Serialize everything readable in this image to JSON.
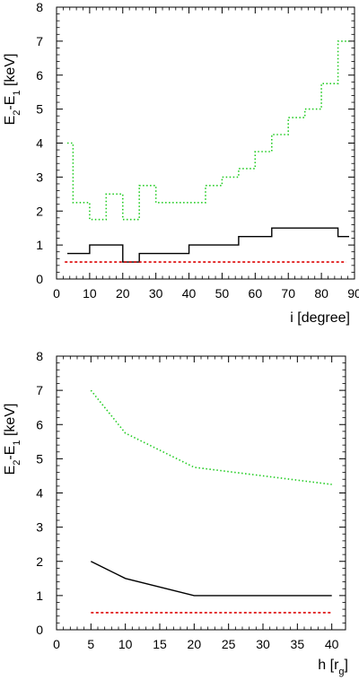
{
  "chart_data": [
    {
      "type": "line",
      "xlabel": "i [degree]",
      "ylabel": {
        "main": "E",
        "sub1": "2",
        "mid": "-E",
        "sub2": "1",
        "unit": " [keV]"
      },
      "xlim": [
        0,
        90
      ],
      "ylim": [
        0,
        8
      ],
      "xticks": [
        "0",
        "10",
        "20",
        "30",
        "40",
        "50",
        "60",
        "70",
        "80",
        "90"
      ],
      "yticks": [
        "0",
        "1",
        "2",
        "3",
        "4",
        "5",
        "6",
        "7",
        "8"
      ],
      "grid": false,
      "legend": "none",
      "series": [
        {
          "color": "#000000",
          "style": "solid",
          "step": true,
          "x": [
            2.5,
            7.5,
            12.5,
            17.5,
            22.5,
            27.5,
            32.5,
            37.5,
            42.5,
            47.5,
            52.5,
            57.5,
            62.5,
            67.5,
            72.5,
            77.5,
            82.5,
            87.5
          ],
          "values": [
            0.75,
            0.75,
            1.0,
            1.0,
            0.5,
            0.75,
            0.75,
            0.75,
            1.0,
            1.0,
            1.0,
            1.25,
            1.25,
            1.5,
            1.5,
            1.5,
            1.5,
            1.25
          ]
        },
        {
          "color": "#22cc22",
          "style": "dotted",
          "step": true,
          "x": [
            2.5,
            7.5,
            12.5,
            17.5,
            22.5,
            27.5,
            32.5,
            37.5,
            42.5,
            47.5,
            52.5,
            57.5,
            62.5,
            67.5,
            72.5,
            77.5,
            82.5,
            87.5
          ],
          "values": [
            4.0,
            2.25,
            1.75,
            2.5,
            1.75,
            2.75,
            2.25,
            2.25,
            2.25,
            2.75,
            3.0,
            3.25,
            3.75,
            4.25,
            4.75,
            5.0,
            5.75,
            7.0
          ]
        },
        {
          "color": "#dd0000",
          "style": "dashed",
          "step": false,
          "x": [
            2.5,
            87.5
          ],
          "values": [
            0.5,
            0.5
          ]
        }
      ]
    },
    {
      "type": "line",
      "xlabel": {
        "main": "h [r",
        "sub": "g",
        "end": "]"
      },
      "ylabel": {
        "main": "E",
        "sub1": "2",
        "mid": "-E",
        "sub2": "1",
        "unit": " [keV]"
      },
      "xlim": [
        0,
        42
      ],
      "ylim": [
        0,
        8
      ],
      "xticks": [
        "0",
        "5",
        "10",
        "15",
        "20",
        "25",
        "30",
        "35",
        "40"
      ],
      "yticks": [
        "0",
        "1",
        "2",
        "3",
        "4",
        "5",
        "6",
        "7",
        "8"
      ],
      "grid": false,
      "legend": "none",
      "series": [
        {
          "color": "#000000",
          "style": "solid",
          "step": false,
          "x": [
            5,
            10,
            20,
            40
          ],
          "values": [
            2.0,
            1.5,
            1.0,
            1.0
          ]
        },
        {
          "color": "#22cc22",
          "style": "dotted",
          "step": false,
          "x": [
            5,
            10,
            20,
            40
          ],
          "values": [
            7.0,
            5.75,
            4.75,
            4.25
          ]
        },
        {
          "color": "#dd0000",
          "style": "dashed",
          "step": false,
          "x": [
            5,
            40
          ],
          "values": [
            0.5,
            0.5
          ]
        }
      ]
    }
  ]
}
